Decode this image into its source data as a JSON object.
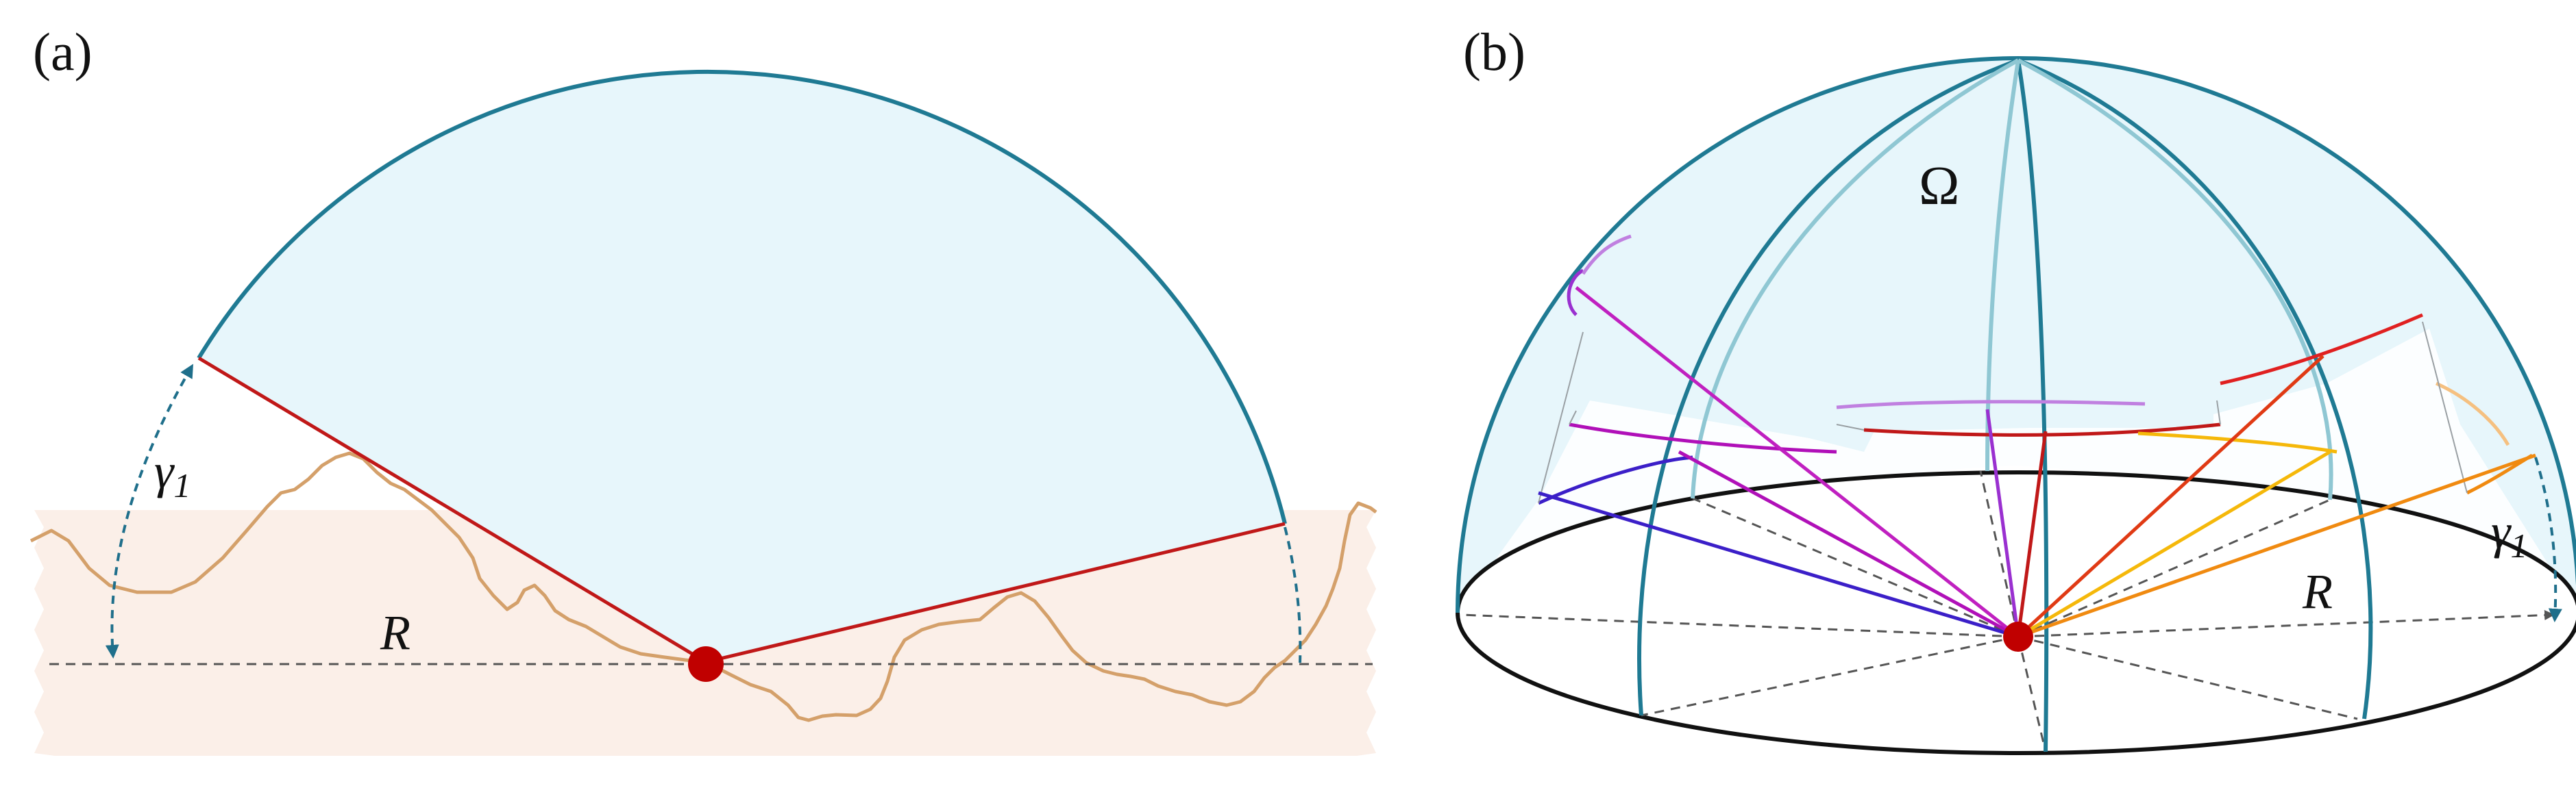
{
  "panels": [
    {
      "id": "a",
      "label": "(a)",
      "gamma_label": "γ",
      "gamma_subscript": "1",
      "radius_label": "R"
    },
    {
      "id": "b",
      "label": "(b)",
      "omega_label": "Ω",
      "gamma_label": "γ",
      "gamma_subscript": "1",
      "radius_label": "R"
    }
  ],
  "colors": {
    "dome_edge": "#1f7a93",
    "dome_fill": "#e7f6fb",
    "ground_fill": "#fbefe8",
    "terrain_line": "#d4a06a",
    "horizon_ray": "#c01818",
    "observer": "#c00000",
    "dashed": "#555555",
    "ray_colors": [
      "#3b1fc8",
      "#b010b8",
      "#c020c0",
      "#9a30d0",
      "#c01818",
      "#e03a14",
      "#f08a10",
      "#f5b80a"
    ]
  },
  "icons": [
    "observer-point-icon",
    "dashed-double-arrow-icon"
  ]
}
